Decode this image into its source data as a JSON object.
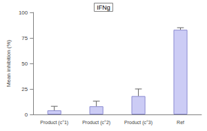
{
  "chart_data": {
    "type": "bar",
    "title": "IFNg",
    "y_label": "Mean inhibition (%)",
    "categories": [
      "Product (c°1)",
      "Product (c°2)",
      "Product (c°3)",
      "Ref"
    ],
    "values": [
      4,
      8,
      18,
      83
    ],
    "errors": [
      4,
      5,
      7,
      2
    ],
    "color": "#ccccf5",
    "ylim": [
      0,
      100
    ],
    "yticks": [
      0,
      25,
      50,
      75,
      100
    ],
    "grid": false
  }
}
